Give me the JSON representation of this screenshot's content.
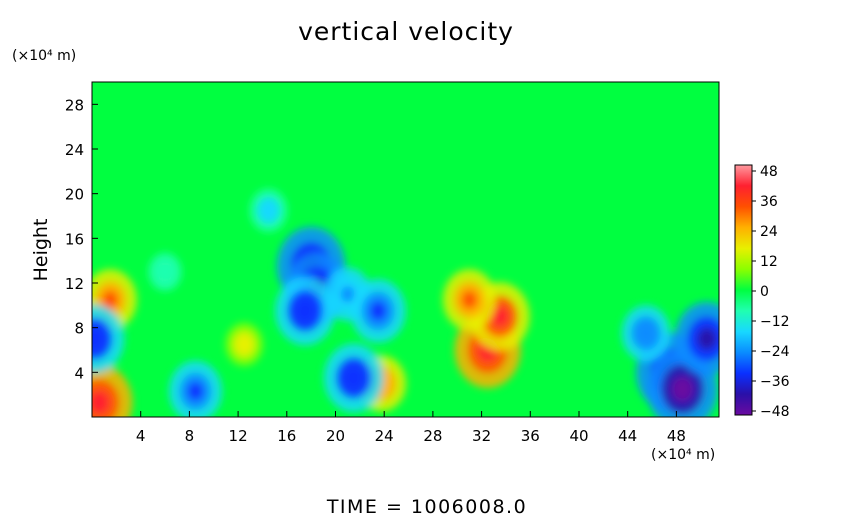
{
  "chart_data": {
    "type": "heatmap",
    "title": "vertical velocity",
    "xlabel": "(×10⁴ m)",
    "ylabel": "Height",
    "y_unit_label": "(×10⁴ m)",
    "x_ticks": [
      "4",
      "8",
      "12",
      "16",
      "20",
      "24",
      "28",
      "32",
      "36",
      "40",
      "44",
      "48"
    ],
    "y_ticks": [
      "4",
      "8",
      "12",
      "16",
      "20",
      "24",
      "28"
    ],
    "xlim": [
      0,
      51.5
    ],
    "ylim": [
      0,
      30
    ],
    "colorbar": {
      "ticks": [
        "48",
        "36",
        "24",
        "12",
        "0",
        "−12",
        "−24",
        "−36",
        "−48"
      ],
      "range": [
        -48,
        48
      ]
    },
    "features": [
      {
        "x": 32.5,
        "y": 6.0,
        "value": 42
      },
      {
        "x": 33.5,
        "y": 9.0,
        "value": 36
      },
      {
        "x": 31.0,
        "y": 10.5,
        "value": 30
      },
      {
        "x": 1.5,
        "y": 10.5,
        "value": 30
      },
      {
        "x": 0.6,
        "y": 1.3,
        "value": 42
      },
      {
        "x": 23.8,
        "y": 3.0,
        "value": 26
      },
      {
        "x": 12.5,
        "y": 6.5,
        "value": 16
      },
      {
        "x": 18.0,
        "y": 13.5,
        "value": -44
      },
      {
        "x": 18.5,
        "y": 11.5,
        "value": -38
      },
      {
        "x": 17.5,
        "y": 9.5,
        "value": -36
      },
      {
        "x": 21.0,
        "y": 11.0,
        "value": -24
      },
      {
        "x": 23.5,
        "y": 9.5,
        "value": -32
      },
      {
        "x": 21.5,
        "y": 3.5,
        "value": -36
      },
      {
        "x": 8.5,
        "y": 2.3,
        "value": -30
      },
      {
        "x": 47.5,
        "y": 4.0,
        "value": -44
      },
      {
        "x": 48.5,
        "y": 2.5,
        "value": -46
      },
      {
        "x": 50.5,
        "y": 7.0,
        "value": -40
      },
      {
        "x": 45.5,
        "y": 7.5,
        "value": -26
      },
      {
        "x": 0.2,
        "y": 7.0,
        "value": -36
      },
      {
        "x": 14.5,
        "y": 18.5,
        "value": -16
      },
      {
        "x": 6.0,
        "y": 13.0,
        "value": -12
      }
    ]
  },
  "time_label": "TIME  =  1006008.0",
  "colors": {
    "ramp": [
      "#6a0aa0",
      "#2a10a8",
      "#0a30ff",
      "#0a8cff",
      "#18d8ff",
      "#20ffb0",
      "#00ff40",
      "#8cff00",
      "#e8f000",
      "#ffb000",
      "#ff5000",
      "#ff2030",
      "#ff9aa0"
    ]
  }
}
